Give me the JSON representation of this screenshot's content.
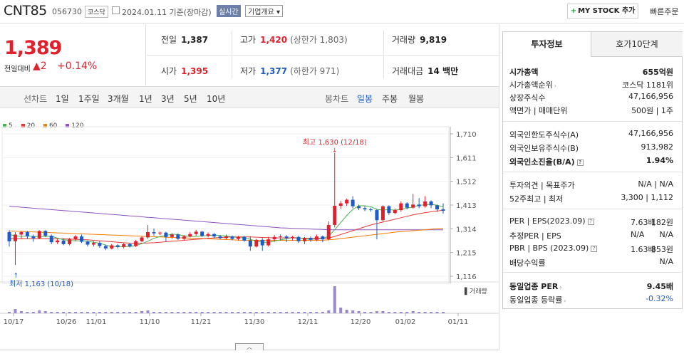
{
  "header": {
    "name": "CNT85",
    "code": "056730",
    "market": "코스닥",
    "date": "2024.01.11  기준(장마감)",
    "realtime": "실시간",
    "company": "기업개요",
    "mystock": "MY STOCK 추가",
    "quick": "빠른주문"
  },
  "price": {
    "current": "1,389",
    "diff_label": "전일대비",
    "change": "▲2",
    "change_pct": "+0.14%"
  },
  "quotes": {
    "prev_k": "전일",
    "prev_v": "1,387",
    "high_k": "고가",
    "high_v": "1,420",
    "high_sub": "(상한가 1,803)",
    "vol_k": "거래량",
    "vol_v": "9,819",
    "open_k": "시가",
    "open_v": "1,395",
    "low_k": "저가",
    "low_v": "1,377",
    "low_sub": "(하한가 971)",
    "amt_k": "거래대금",
    "amt_v": "14 백만"
  },
  "tabs": {
    "line_label": "선차트",
    "line": [
      "1일",
      "1주일",
      "3개월",
      "1년",
      "3년",
      "5년",
      "10년"
    ],
    "candle_label": "봉차트",
    "candle": [
      "일봉",
      "주봉",
      "월봉"
    ]
  },
  "legend": [
    {
      "label": "5",
      "color": "#4caf50"
    },
    {
      "label": "20",
      "color": "#e53935"
    },
    {
      "label": "60",
      "color": "#f57c00"
    },
    {
      "label": "120",
      "color": "#8e55c0"
    }
  ],
  "chart_data": {
    "type": "candlestick",
    "y_ticks": [
      "1,710",
      "1,611",
      "1,512",
      "1,413",
      "1,314",
      "1,215",
      "1,116"
    ],
    "ylim": [
      1116,
      1710
    ],
    "x_ticks": [
      "10/17",
      "10/26",
      "11/01",
      "11/10",
      "11/21",
      "11/30",
      "12/11",
      "12/20",
      "01/02",
      "01/11"
    ],
    "annotation_high": "최고 1,630 (12/18)",
    "annotation_low": "최저 1,163 (10/18)",
    "volume_label": "거래량",
    "candles": [
      {
        "o": 1300,
        "c": 1262,
        "h": 1308,
        "l": 1240,
        "v": 2
      },
      {
        "o": 1262,
        "c": 1290,
        "h": 1300,
        "l": 1163,
        "v": 6
      },
      {
        "o": 1290,
        "c": 1300,
        "h": 1305,
        "l": 1270,
        "v": 3
      },
      {
        "o": 1300,
        "c": 1282,
        "h": 1305,
        "l": 1272,
        "v": 2
      },
      {
        "o": 1282,
        "c": 1275,
        "h": 1290,
        "l": 1260,
        "v": 2
      },
      {
        "o": 1275,
        "c": 1305,
        "h": 1308,
        "l": 1272,
        "v": 4
      },
      {
        "o": 1305,
        "c": 1285,
        "h": 1308,
        "l": 1280,
        "v": 3
      },
      {
        "o": 1285,
        "c": 1258,
        "h": 1290,
        "l": 1250,
        "v": 2
      },
      {
        "o": 1258,
        "c": 1265,
        "h": 1272,
        "l": 1250,
        "v": 2
      },
      {
        "o": 1265,
        "c": 1250,
        "h": 1275,
        "l": 1245,
        "v": 2
      },
      {
        "o": 1250,
        "c": 1270,
        "h": 1276,
        "l": 1245,
        "v": 2
      },
      {
        "o": 1270,
        "c": 1282,
        "h": 1288,
        "l": 1262,
        "v": 2
      },
      {
        "o": 1282,
        "c": 1260,
        "h": 1290,
        "l": 1255,
        "v": 2
      },
      {
        "o": 1260,
        "c": 1248,
        "h": 1265,
        "l": 1240,
        "v": 2
      },
      {
        "o": 1248,
        "c": 1255,
        "h": 1262,
        "l": 1240,
        "v": 2
      },
      {
        "o": 1255,
        "c": 1242,
        "h": 1262,
        "l": 1235,
        "v": 2
      },
      {
        "o": 1242,
        "c": 1232,
        "h": 1248,
        "l": 1225,
        "v": 2
      },
      {
        "o": 1232,
        "c": 1245,
        "h": 1250,
        "l": 1228,
        "v": 2
      },
      {
        "o": 1245,
        "c": 1238,
        "h": 1250,
        "l": 1232,
        "v": 2
      },
      {
        "o": 1238,
        "c": 1250,
        "h": 1255,
        "l": 1232,
        "v": 2
      },
      {
        "o": 1250,
        "c": 1242,
        "h": 1256,
        "l": 1236,
        "v": 2
      },
      {
        "o": 1242,
        "c": 1262,
        "h": 1268,
        "l": 1238,
        "v": 2
      },
      {
        "o": 1262,
        "c": 1278,
        "h": 1282,
        "l": 1258,
        "v": 3
      },
      {
        "o": 1278,
        "c": 1300,
        "h": 1330,
        "l": 1272,
        "v": 4
      },
      {
        "o": 1300,
        "c": 1295,
        "h": 1315,
        "l": 1285,
        "v": 2
      },
      {
        "o": 1295,
        "c": 1298,
        "h": 1302,
        "l": 1288,
        "v": 2
      },
      {
        "o": 1298,
        "c": 1280,
        "h": 1302,
        "l": 1260,
        "v": 2
      },
      {
        "o": 1280,
        "c": 1290,
        "h": 1295,
        "l": 1272,
        "v": 2
      },
      {
        "o": 1290,
        "c": 1272,
        "h": 1295,
        "l": 1268,
        "v": 2
      },
      {
        "o": 1272,
        "c": 1282,
        "h": 1288,
        "l": 1265,
        "v": 2
      },
      {
        "o": 1282,
        "c": 1292,
        "h": 1300,
        "l": 1278,
        "v": 2
      },
      {
        "o": 1292,
        "c": 1302,
        "h": 1310,
        "l": 1285,
        "v": 2
      },
      {
        "o": 1302,
        "c": 1285,
        "h": 1305,
        "l": 1280,
        "v": 2
      },
      {
        "o": 1285,
        "c": 1292,
        "h": 1298,
        "l": 1278,
        "v": 2
      },
      {
        "o": 1292,
        "c": 1282,
        "h": 1296,
        "l": 1276,
        "v": 2
      },
      {
        "o": 1282,
        "c": 1275,
        "h": 1288,
        "l": 1270,
        "v": 2
      },
      {
        "o": 1275,
        "c": 1282,
        "h": 1290,
        "l": 1270,
        "v": 2
      },
      {
        "o": 1282,
        "c": 1272,
        "h": 1286,
        "l": 1266,
        "v": 2
      },
      {
        "o": 1272,
        "c": 1280,
        "h": 1285,
        "l": 1265,
        "v": 2
      },
      {
        "o": 1280,
        "c": 1265,
        "h": 1285,
        "l": 1260,
        "v": 2
      },
      {
        "o": 1265,
        "c": 1240,
        "h": 1282,
        "l": 1222,
        "v": 2
      },
      {
        "o": 1240,
        "c": 1268,
        "h": 1272,
        "l": 1236,
        "v": 2
      },
      {
        "o": 1268,
        "c": 1245,
        "h": 1275,
        "l": 1222,
        "v": 2
      },
      {
        "o": 1245,
        "c": 1270,
        "h": 1280,
        "l": 1240,
        "v": 2
      },
      {
        "o": 1270,
        "c": 1280,
        "h": 1288,
        "l": 1260,
        "v": 2
      },
      {
        "o": 1280,
        "c": 1282,
        "h": 1290,
        "l": 1265,
        "v": 2
      },
      {
        "o": 1282,
        "c": 1276,
        "h": 1288,
        "l": 1258,
        "v": 2
      },
      {
        "o": 1276,
        "c": 1280,
        "h": 1285,
        "l": 1265,
        "v": 2
      },
      {
        "o": 1280,
        "c": 1262,
        "h": 1285,
        "l": 1255,
        "v": 2
      },
      {
        "o": 1262,
        "c": 1276,
        "h": 1280,
        "l": 1250,
        "v": 2
      },
      {
        "o": 1276,
        "c": 1268,
        "h": 1282,
        "l": 1260,
        "v": 2
      },
      {
        "o": 1268,
        "c": 1282,
        "h": 1290,
        "l": 1262,
        "v": 2
      },
      {
        "o": 1282,
        "c": 1270,
        "h": 1286,
        "l": 1258,
        "v": 2
      },
      {
        "o": 1270,
        "c": 1330,
        "h": 1345,
        "l": 1266,
        "v": 4
      },
      {
        "o": 1330,
        "c": 1410,
        "h": 1630,
        "l": 1320,
        "v": 38
      },
      {
        "o": 1410,
        "c": 1420,
        "h": 1430,
        "l": 1398,
        "v": 8
      },
      {
        "o": 1420,
        "c": 1435,
        "h": 1440,
        "l": 1410,
        "v": 5
      },
      {
        "o": 1435,
        "c": 1408,
        "h": 1450,
        "l": 1400,
        "v": 4
      },
      {
        "o": 1408,
        "c": 1400,
        "h": 1415,
        "l": 1392,
        "v": 3
      },
      {
        "o": 1400,
        "c": 1395,
        "h": 1408,
        "l": 1388,
        "v": 2
      },
      {
        "o": 1395,
        "c": 1392,
        "h": 1402,
        "l": 1385,
        "v": 2
      },
      {
        "o": 1392,
        "c": 1350,
        "h": 1396,
        "l": 1270,
        "v": 3
      },
      {
        "o": 1350,
        "c": 1408,
        "h": 1412,
        "l": 1345,
        "v": 3
      },
      {
        "o": 1408,
        "c": 1380,
        "h": 1412,
        "l": 1372,
        "v": 2
      },
      {
        "o": 1380,
        "c": 1392,
        "h": 1398,
        "l": 1375,
        "v": 2
      },
      {
        "o": 1392,
        "c": 1420,
        "h": 1428,
        "l": 1385,
        "v": 2
      },
      {
        "o": 1420,
        "c": 1402,
        "h": 1425,
        "l": 1396,
        "v": 2
      },
      {
        "o": 1402,
        "c": 1415,
        "h": 1460,
        "l": 1398,
        "v": 3
      },
      {
        "o": 1415,
        "c": 1408,
        "h": 1442,
        "l": 1400,
        "v": 2
      },
      {
        "o": 1408,
        "c": 1428,
        "h": 1450,
        "l": 1402,
        "v": 2
      },
      {
        "o": 1428,
        "c": 1412,
        "h": 1432,
        "l": 1400,
        "v": 2
      },
      {
        "o": 1412,
        "c": 1395,
        "h": 1415,
        "l": 1385,
        "v": 2
      },
      {
        "o": 1395,
        "c": 1389,
        "h": 1420,
        "l": 1377,
        "v": 2
      }
    ],
    "ma5": [
      1290,
      1285,
      1282,
      1284,
      1282,
      1282,
      1282,
      1283,
      1275,
      1268,
      1266,
      1264,
      1264,
      1262,
      1258,
      1254,
      1246,
      1240,
      1240,
      1240,
      1240,
      1244,
      1252,
      1262,
      1274,
      1282,
      1286,
      1292,
      1290,
      1285,
      1282,
      1282,
      1284,
      1286,
      1288,
      1286,
      1284,
      1280,
      1278,
      1276,
      1270,
      1262,
      1258,
      1258,
      1262,
      1268,
      1272,
      1278,
      1276,
      1272,
      1270,
      1272,
      1272,
      1284,
      1310,
      1340,
      1370,
      1395,
      1410,
      1410,
      1406,
      1395,
      1392,
      1394,
      1392,
      1395,
      1400,
      1405,
      1412,
      1414,
      1416,
      1412,
      1405
    ],
    "ma20": [
      1272,
      1272,
      1272,
      1272,
      1272,
      1272,
      1272,
      1272,
      1272,
      1272,
      1271,
      1270,
      1269,
      1268,
      1266,
      1264,
      1262,
      1260,
      1258,
      1256,
      1254,
      1253,
      1254,
      1255,
      1256,
      1258,
      1260,
      1262,
      1264,
      1266,
      1268,
      1270,
      1272,
      1274,
      1276,
      1278,
      1279,
      1280,
      1280,
      1280,
      1280,
      1279,
      1278,
      1277,
      1276,
      1276,
      1276,
      1276,
      1275,
      1274,
      1274,
      1274,
      1274,
      1276,
      1282,
      1290,
      1298,
      1306,
      1314,
      1322,
      1330,
      1336,
      1342,
      1348,
      1354,
      1360,
      1366,
      1372,
      1377,
      1381,
      1385,
      1388,
      1392
    ],
    "ma60": [
      1305,
      1304,
      1303,
      1302,
      1301,
      1300,
      1299,
      1298,
      1297,
      1296,
      1295,
      1294,
      1293,
      1292,
      1291,
      1290,
      1289,
      1288,
      1287,
      1286,
      1285,
      1284,
      1283,
      1282,
      1281,
      1280,
      1279,
      1278,
      1277,
      1276,
      1275,
      1274,
      1273,
      1272,
      1271,
      1270,
      1269,
      1268,
      1267,
      1266,
      1266,
      1266,
      1266,
      1266,
      1266,
      1266,
      1266,
      1266,
      1266,
      1266,
      1266,
      1266,
      1266,
      1268,
      1270,
      1273,
      1276,
      1279,
      1282,
      1285,
      1288,
      1291,
      1294,
      1297,
      1300,
      1302,
      1304,
      1306,
      1308,
      1310,
      1312,
      1314,
      1316
    ],
    "ma120": [
      1408,
      1406,
      1404,
      1402,
      1400,
      1398,
      1396,
      1394,
      1392,
      1390,
      1388,
      1386,
      1384,
      1382,
      1380,
      1378,
      1376,
      1374,
      1372,
      1370,
      1368,
      1366,
      1364,
      1362,
      1360,
      1358,
      1356,
      1354,
      1352,
      1350,
      1348,
      1346,
      1344,
      1342,
      1340,
      1338,
      1336,
      1334,
      1332,
      1330,
      1328,
      1326,
      1324,
      1322,
      1320,
      1318,
      1317,
      1316,
      1315,
      1314,
      1313,
      1312,
      1311,
      1310,
      1310,
      1310,
      1310,
      1310,
      1310,
      1310,
      1310,
      1310,
      1310,
      1310,
      1310,
      1310,
      1310,
      1310,
      1310,
      1310,
      1310,
      1310,
      1310
    ]
  },
  "panel": {
    "tab1": "투자정보",
    "tab2": "호가10단계",
    "rows": [
      {
        "l": "시가총액",
        "r": "655억원"
      },
      {
        "l": "시가총액순위",
        "r": "코스닥  1181위"
      },
      {
        "l": "상장주식수",
        "r": "47,166,956"
      },
      {
        "l": "액면가 | 매매단위",
        "r": "500원 | 1주"
      },
      {
        "l": "외국인한도주식수(A)",
        "r": "47,166,956"
      },
      {
        "l": "외국인보유주식수(B)",
        "r": "913,982"
      },
      {
        "l": "외국인소진율(B/A)",
        "r": "1.94%"
      },
      {
        "l": "투자의견 | 목표주가",
        "r": "N/A | N/A"
      },
      {
        "l": "52주최고 | 최저",
        "r": "3,300 | 1,112"
      },
      {
        "l": "PER | EPS(2023.09)",
        "r1": "7.63배",
        "r": "182원"
      },
      {
        "l": "추정PER | EPS",
        "r1": "N/A",
        "r": "N/A"
      },
      {
        "l": "PBR | BPS (2023.09)",
        "r1": "1.63배",
        "r": "853원"
      },
      {
        "l": "배당수익률",
        "r": "N/A"
      },
      {
        "l": "동일업종 PER",
        "r": "9.45배"
      },
      {
        "l": "동일업종 등락률",
        "r": "-0.32%"
      }
    ]
  }
}
